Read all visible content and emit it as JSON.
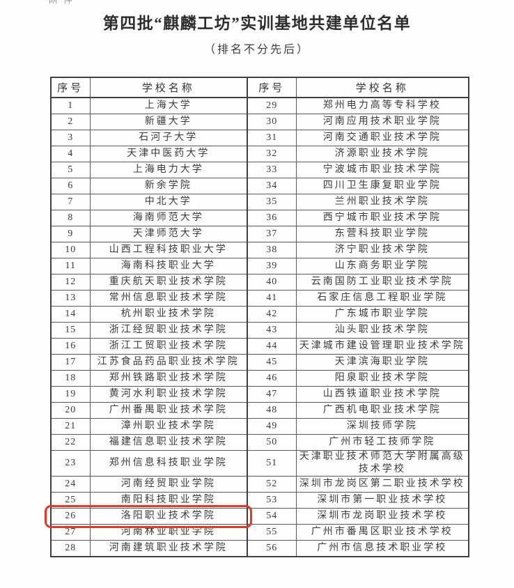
{
  "top_fragment_text": "附件",
  "title": "第四批“麒麟工坊”实训基地共建单位名单",
  "subtitle": "（排名不分先后）",
  "table": {
    "headers": [
      "序号",
      "学校名称",
      "序号",
      "学校名称"
    ],
    "rows": [
      {
        "no_left": "1",
        "school_left": "上海大学",
        "no_right": "29",
        "school_right": "郑州电力高等专科学校"
      },
      {
        "no_left": "2",
        "school_left": "新疆大学",
        "no_right": "30",
        "school_right": "河南应用技术职业学院"
      },
      {
        "no_left": "3",
        "school_left": "石河子大学",
        "no_right": "31",
        "school_right": "河南交通职业技术学院"
      },
      {
        "no_left": "4",
        "school_left": "天津中医药大学",
        "no_right": "32",
        "school_right": "济源职业技术学院"
      },
      {
        "no_left": "5",
        "school_left": "上海电力大学",
        "no_right": "33",
        "school_right": "宁波城市职业技术学院"
      },
      {
        "no_left": "6",
        "school_left": "新余学院",
        "no_right": "34",
        "school_right": "四川卫生康复职业学院"
      },
      {
        "no_left": "7",
        "school_left": "中北大学",
        "no_right": "35",
        "school_right": "兰州职业技术学院"
      },
      {
        "no_left": "8",
        "school_left": "海南师范大学",
        "no_right": "36",
        "school_right": "西宁城市职业技术学院"
      },
      {
        "no_left": "9",
        "school_left": "天津师范大学",
        "no_right": "37",
        "school_right": "东营科技职业学院"
      },
      {
        "no_left": "10",
        "school_left": "山西工程科技职业大学",
        "no_right": "38",
        "school_right": "济宁职业技术学院"
      },
      {
        "no_left": "11",
        "school_left": "海南科技职业大学",
        "no_right": "39",
        "school_right": "山东商务职业学院"
      },
      {
        "no_left": "12",
        "school_left": "重庆航天职业技术学院",
        "no_right": "40",
        "school_right": "云南国防工业职业技术学院"
      },
      {
        "no_left": "13",
        "school_left": "常州信息职业技术学院",
        "no_right": "41",
        "school_right": "石家庄信息工程职业学院"
      },
      {
        "no_left": "14",
        "school_left": "杭州职业技术学院",
        "no_right": "42",
        "school_right": "广东城市职业学院"
      },
      {
        "no_left": "15",
        "school_left": "浙江经贸职业技术学院",
        "no_right": "43",
        "school_right": "汕头职业技术学院"
      },
      {
        "no_left": "16",
        "school_left": "浙江工贸职业技术学院",
        "no_right": "44",
        "school_right": "天津城市建设管理职业技术学院"
      },
      {
        "no_left": "17",
        "school_left": "江苏食品药品职业技术学院",
        "no_right": "45",
        "school_right": "天津滨海职业学院"
      },
      {
        "no_left": "18",
        "school_left": "郑州铁路职业技术学院",
        "no_right": "46",
        "school_right": "阳泉职业技术学院"
      },
      {
        "no_left": "19",
        "school_left": "黄河水利职业技术学院",
        "no_right": "47",
        "school_right": "山西铁道职业技术学院"
      },
      {
        "no_left": "20",
        "school_left": "广州番禺职业技术学院",
        "no_right": "48",
        "school_right": "广西机电职业技术学院"
      },
      {
        "no_left": "21",
        "school_left": "漳州职业技术学院",
        "no_right": "49",
        "school_right": "深圳技师学院"
      },
      {
        "no_left": "22",
        "school_left": "福建信息职业技术学院",
        "no_right": "50",
        "school_right": "广州市轻工技师学院"
      },
      {
        "no_left": "23",
        "school_left": "郑州信息科技职业学院",
        "no_right": "51",
        "school_right": "天津职业技术师范大学附属高级技术学校"
      },
      {
        "no_left": "24",
        "school_left": "河南经贸职业学院",
        "no_right": "52",
        "school_right": "深圳市龙岗区第二职业技术学校"
      },
      {
        "no_left": "25",
        "school_left": "南阳科技职业学院",
        "no_right": "53",
        "school_right": "深圳市第一职业技术学校"
      },
      {
        "no_left": "26",
        "school_left": "洛阳职业技术学院",
        "no_right": "54",
        "school_right": "深圳市龙岗职业技术学校"
      },
      {
        "no_left": "27",
        "school_left": "河南林业职业学院",
        "no_right": "55",
        "school_right": "广州市番禺区职业技术学校"
      },
      {
        "no_left": "28",
        "school_left": "河南建筑职业技术学院",
        "no_right": "56",
        "school_right": "广州市信息技术职业学校"
      }
    ],
    "highlight": {
      "row_no": "26",
      "color": "#df382c"
    }
  }
}
